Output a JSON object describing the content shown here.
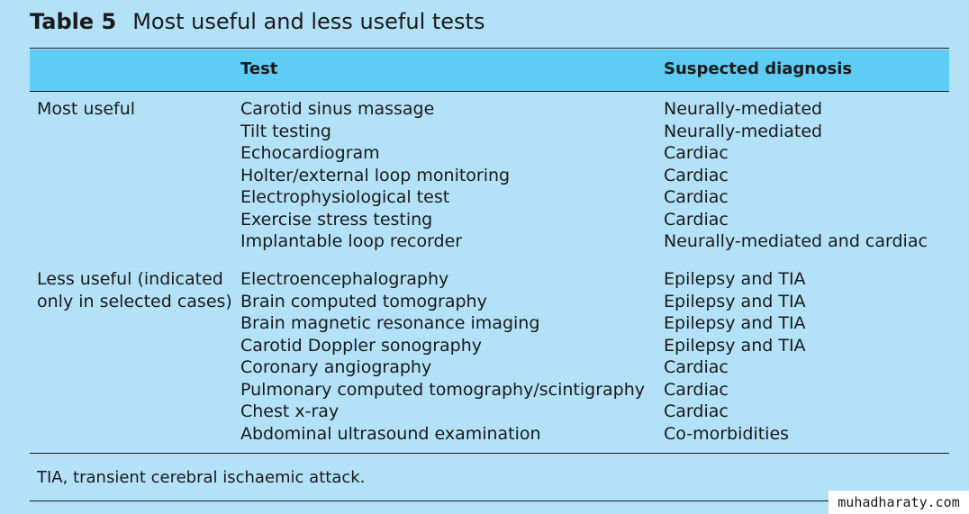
{
  "table": {
    "number": "Table 5",
    "caption": "Most useful and less useful tests",
    "headers": {
      "group": "",
      "test": "Test",
      "diagnosis": "Suspected diagnosis"
    },
    "groups": [
      {
        "label_lines": [
          "Most useful"
        ],
        "rows": [
          {
            "test": "Carotid sinus massage",
            "diagnosis": "Neurally-mediated"
          },
          {
            "test": "Tilt testing",
            "diagnosis": "Neurally-mediated"
          },
          {
            "test": "Echocardiogram",
            "diagnosis": "Cardiac"
          },
          {
            "test": "Holter/external loop monitoring",
            "diagnosis": "Cardiac"
          },
          {
            "test": "Electrophysiological test",
            "diagnosis": "Cardiac"
          },
          {
            "test": "Exercise stress testing",
            "diagnosis": "Cardiac"
          },
          {
            "test": "Implantable loop recorder",
            "diagnosis": "Neurally-mediated and cardiac"
          }
        ]
      },
      {
        "label_lines": [
          "Less useful (indicated",
          "only in selected cases)"
        ],
        "rows": [
          {
            "test": "Electroencephalography",
            "diagnosis": "Epilepsy and TIA"
          },
          {
            "test": "Brain computed tomography",
            "diagnosis": "Epilepsy and TIA"
          },
          {
            "test": "Brain magnetic resonance imaging",
            "diagnosis": "Epilepsy and TIA"
          },
          {
            "test": "Carotid Doppler sonography",
            "diagnosis": "Epilepsy and TIA"
          },
          {
            "test": "Coronary angiography",
            "diagnosis": "Cardiac"
          },
          {
            "test": "Pulmonary computed tomography/scintigraphy",
            "diagnosis": "Cardiac"
          },
          {
            "test": "Chest x-ray",
            "diagnosis": "Cardiac"
          },
          {
            "test": "Abdominal ultrasound examination",
            "diagnosis": "Co-morbidities"
          }
        ]
      }
    ],
    "footnote": "TIA, transient cerebral ischaemic attack."
  },
  "watermark": "muhadharaty.com"
}
